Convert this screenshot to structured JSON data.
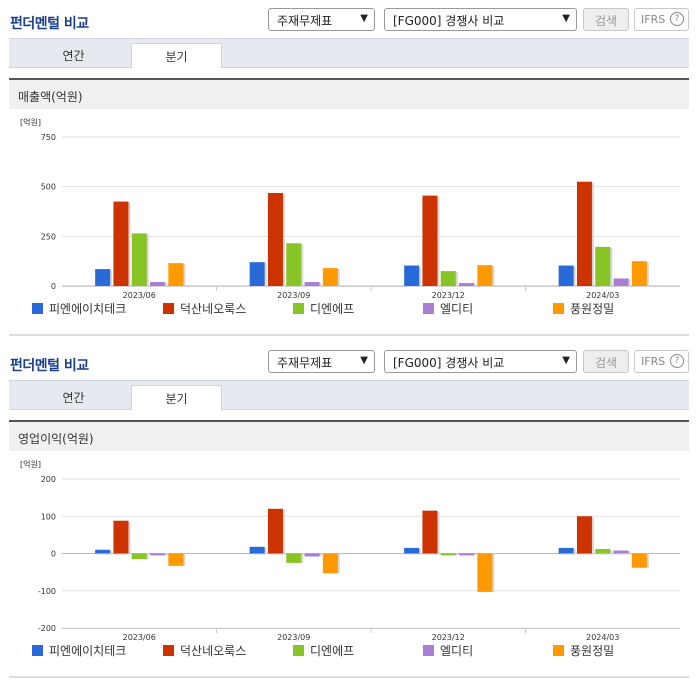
{
  "panels": [
    {
      "title": "펀더멘털 비교",
      "select1": "주재무제표",
      "select2": "[FG000] 경쟁사 비교",
      "search_label": "검색",
      "ifrs_label": "IFRS",
      "help_label": "?",
      "tabs": [
        "연간",
        "분기"
      ],
      "active_tab": "분기",
      "subtitle": "매출액(억원)"
    },
    {
      "title": "펀더멘털 비교",
      "select1": "주재무제표",
      "select2": "[FG000] 경쟁사 비교",
      "search_label": "검색",
      "ifrs_label": "IFRS",
      "help_label": "?",
      "tabs": [
        "연간",
        "분기"
      ],
      "active_tab": "분기",
      "subtitle": "영업이익(억원)"
    }
  ],
  "chart_data": [
    {
      "type": "bar",
      "unit_label": "[억원]",
      "categories": [
        "2023/06",
        "2023/09",
        "2023/12",
        "2024/03"
      ],
      "ylim": [
        0,
        750
      ],
      "yticks": [
        0,
        250,
        500,
        750
      ],
      "grid": true,
      "legend_position": "bottom",
      "series": [
        {
          "name": "피엔에이치테크",
          "color": "#2a6ad8",
          "values": [
            85,
            120,
            103,
            103
          ]
        },
        {
          "name": "덕산네오룩스",
          "color": "#cc3300",
          "values": [
            425,
            468,
            455,
            525
          ]
        },
        {
          "name": "디엔에프",
          "color": "#88c425",
          "values": [
            265,
            215,
            75,
            197
          ]
        },
        {
          "name": "엘디티",
          "color": "#a97fd6",
          "values": [
            20,
            20,
            15,
            38
          ]
        },
        {
          "name": "풍원정밀",
          "color": "#ff9900",
          "values": [
            115,
            90,
            105,
            125
          ]
        }
      ]
    },
    {
      "type": "bar",
      "unit_label": "[억원]",
      "categories": [
        "2023/06",
        "2023/09",
        "2023/12",
        "2024/03"
      ],
      "ylim": [
        -200,
        200
      ],
      "yticks": [
        -200,
        -100,
        0,
        100,
        200
      ],
      "grid": true,
      "legend_position": "bottom",
      "series": [
        {
          "name": "피엔에이치테크",
          "color": "#2a6ad8",
          "values": [
            10,
            18,
            15,
            15
          ]
        },
        {
          "name": "덕산네오룩스",
          "color": "#cc3300",
          "values": [
            88,
            120,
            115,
            100
          ]
        },
        {
          "name": "디엔에프",
          "color": "#88c425",
          "values": [
            -15,
            -25,
            -5,
            12
          ]
        },
        {
          "name": "엘디티",
          "color": "#a97fd6",
          "values": [
            -5,
            -8,
            -5,
            8
          ]
        },
        {
          "name": "풍원정밀",
          "color": "#ff9900",
          "values": [
            -33,
            -53,
            -103,
            -38
          ]
        }
      ]
    }
  ]
}
